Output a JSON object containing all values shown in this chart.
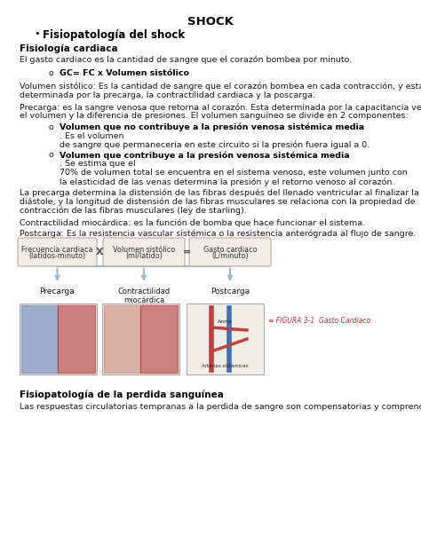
{
  "title": "SHOCK",
  "bullet_heading": "Fisiopatología del shock",
  "section1_heading": "Fisiología cardiaca",
  "section1_text": "El gasto cardiaco es la cantidad de sangre que el corazón bombea por minuto.",
  "subsection1_bullet": "GC= FC x Volumen sistólico",
  "volumen_line1": "Volumen sistólico: Es la cantidad de sangre que el corazón bombea en cada contracción, y esta",
  "volumen_line2": "determinada por la precarga, la contractilidad cardiaca y la poscarga.",
  "precarga_line1": "Precarga: es la sangre venosa que retorna al corazón. Esta determinada por la capacitancia venosa,",
  "precarga_line2": "el volumen y la diferencia de presiones. El volumen sanguíneo se divide en 2 componentes:",
  "b2a_bold": "Volumen que no contribuye a la presión venosa sistémica media",
  "b2a_rest": ". Es el volumen",
  "b2a_line2": "de sangre que permanecería en este circuito si la presión fuera igual a 0.",
  "b2b_bold": "Volumen que contribuye a la presión venosa sistémica media",
  "b2b_rest": ". Se estima que el",
  "b2b_line2": "70% de volumen total se encuentra en el sistema venoso, este volumen junto con",
  "b2b_line3": "la elasticidad de las venas determina la presión y el retorno venoso al corazón.",
  "lapre_line1": "La precarga determina la distensión de las fibras después del llenado ventricular al finalizar la",
  "lapre_line2": "diástole, y la longitud de distensión de las fibras musculares se relaciona con la propiedad de",
  "lapre_line3": "contracción de las fibras musculares (ley de starling).",
  "contractilidad_text": "Contractilidad miocárdica: es la función de bomba que hace funcionar el sistema.",
  "postcarga_text": "Postcarga: Es la resistencia vascular sistémica o la resistencia anterógrada al flujo de sangre.",
  "box1_label1": "Frecuencia cardiaca",
  "box1_label2": "(latidos-minuto)",
  "box2_label1": "Volumen sistólico",
  "box2_label2": "(ml/latido)",
  "box3_label1": "Gasto cardiaco",
  "box3_label2": "(L/minuto)",
  "lbl_precarga": "Precarga",
  "lbl_contractilidad": "Contractilidad\nmiocárdica",
  "lbl_postcarga": "Postcarga",
  "figura_caption": "≡ FIGURA 3-1  Gasto Cardiaco.",
  "section2_heading": "Fisiopatología de la perdida sanguínea",
  "section2_text": "Las respuestas circulatorias tempranas a la perdida de sangre son compensatorias y comprenden:",
  "bg_color": "#ffffff",
  "text_color": "#1a1a1a",
  "bold_color": "#000000"
}
